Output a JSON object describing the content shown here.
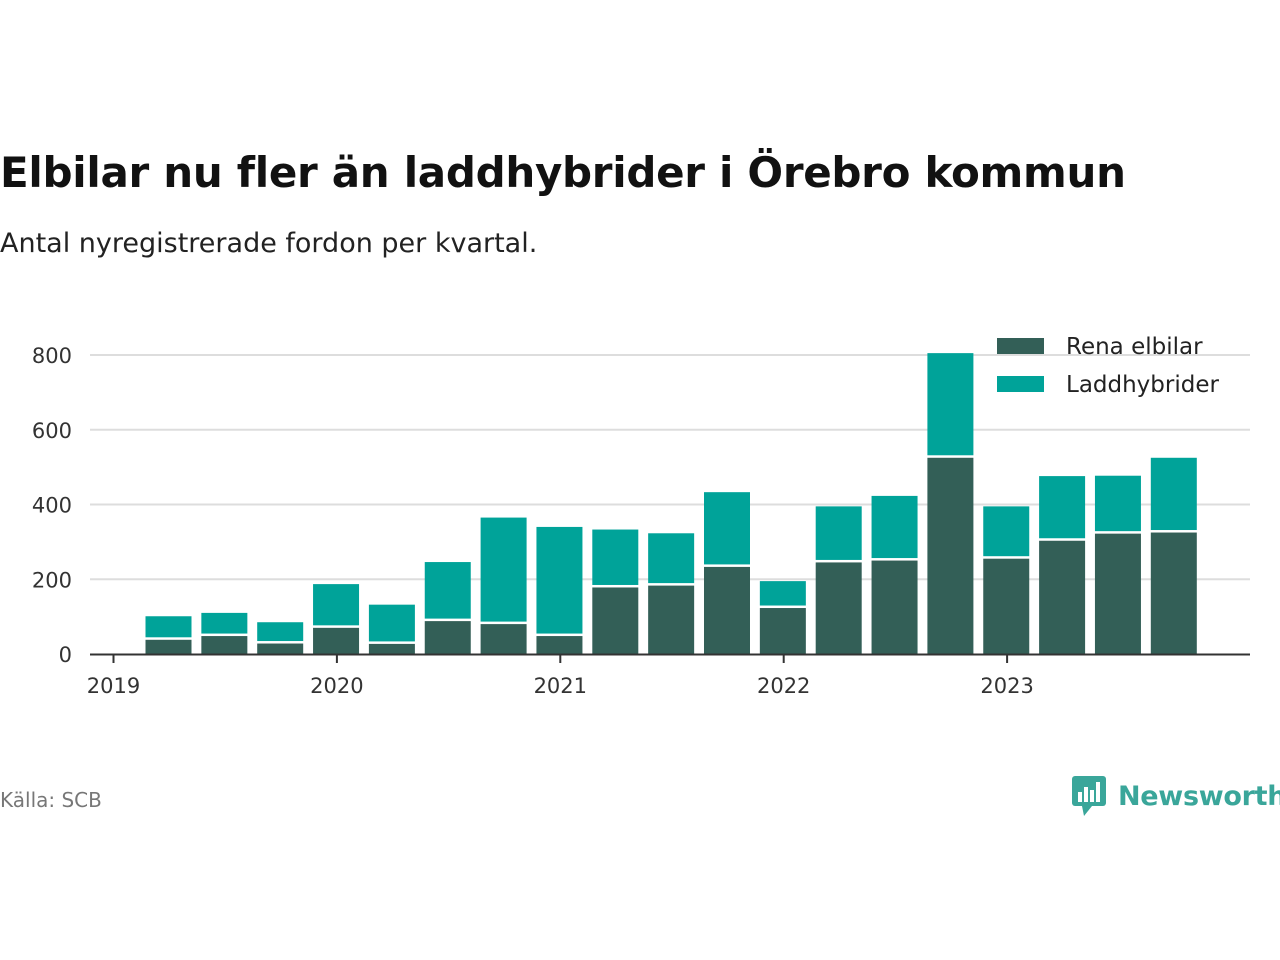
{
  "header": {
    "title": "Elbilar nu fler än laddhybrider i Örebro kommun",
    "subtitle": "Antal nyregistrerade fordon per kvartal."
  },
  "footer": {
    "source": "Källa: SCB",
    "brand": "Newsworthy"
  },
  "colors": {
    "rena_elbilar": "#335f57",
    "laddhybrider": "#00a399",
    "grid": "#dddddd",
    "axis": "#333333",
    "brand": "#3aa69a"
  },
  "chart_data": {
    "type": "bar",
    "stacked": true,
    "title": "Elbilar nu fler än laddhybrider i Örebro kommun",
    "subtitle": "Antal nyregistrerade fordon per kvartal.",
    "xlabel": "",
    "ylabel": "",
    "ylim": [
      0,
      800
    ],
    "yticks": [
      0,
      200,
      400,
      600,
      800
    ],
    "xticks": [
      "2019",
      "2020",
      "2021",
      "2022",
      "2023"
    ],
    "categories": [
      "2019 Q2",
      "2019 Q3",
      "2019 Q4",
      "2020 Q1",
      "2020 Q2",
      "2020 Q3",
      "2020 Q4",
      "2021 Q1",
      "2021 Q2",
      "2021 Q3",
      "2021 Q4",
      "2022 Q1",
      "2022 Q2",
      "2022 Q3",
      "2022 Q4",
      "2023 Q1",
      "2023 Q2",
      "2023 Q3",
      "2023 Q4"
    ],
    "series": [
      {
        "name": "Rena elbilar",
        "values": [
          38,
          48,
          28,
          70,
          27,
          88,
          80,
          48,
          178,
          183,
          233,
          123,
          245,
          250,
          525,
          255,
          303,
          322,
          325
        ]
      },
      {
        "name": "Laddhybrider",
        "values": [
          63,
          62,
          57,
          117,
          105,
          158,
          285,
          292,
          155,
          140,
          200,
          72,
          150,
          173,
          280,
          140,
          173,
          155,
          200
        ]
      }
    ],
    "grid": true,
    "legend_position": "top-right"
  }
}
